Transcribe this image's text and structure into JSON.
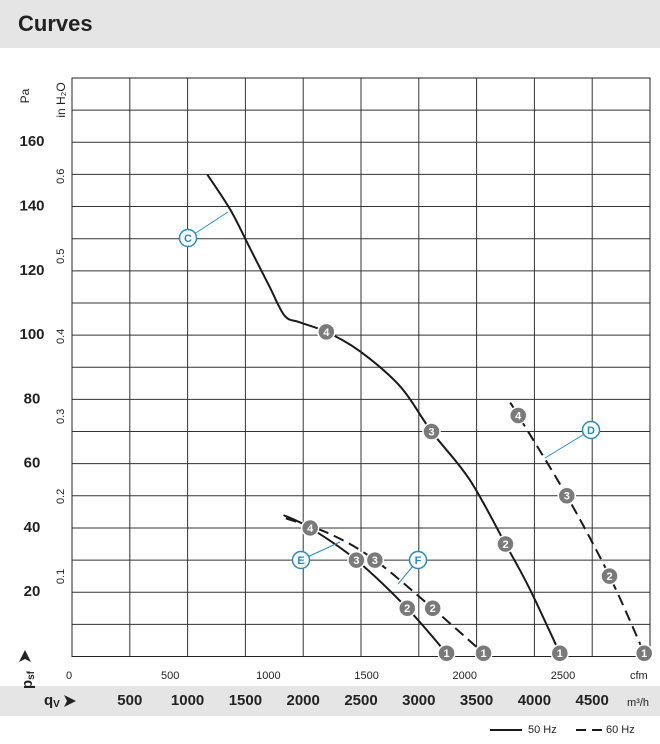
{
  "chart_data": {
    "type": "line",
    "title": "Curves",
    "y_label": "Pa",
    "y2_label": "in H₂O",
    "y_symbol": "p",
    "y_symbol_sub": "sf",
    "x_symbol": "q",
    "x_symbol_sub": "V",
    "x_label": "m³/h",
    "x2_label": "cfm",
    "xlim": [
      0,
      5000
    ],
    "xticks": [
      500,
      1000,
      1500,
      2000,
      2500,
      3000,
      3500,
      4000,
      4500
    ],
    "x2lim": [
      0,
      2943
    ],
    "x2ticks": [
      0,
      500,
      1000,
      1500,
      2000,
      2500
    ],
    "ylim": [
      0,
      180
    ],
    "yticks": [
      20,
      40,
      60,
      80,
      100,
      120,
      140,
      160
    ],
    "minor_yticks": [
      10,
      30,
      50,
      70,
      90,
      110,
      130,
      150,
      170
    ],
    "y2lim": [
      0,
      0.7227
    ],
    "y2ticks": [
      0.1,
      0.2,
      0.3,
      0.4,
      0.5,
      0.6
    ],
    "grid": true,
    "legend": [
      {
        "label": "50 Hz",
        "dashed": false
      },
      {
        "label": "60 Hz",
        "dashed": true
      }
    ],
    "series": [
      {
        "name": "C",
        "color": "#1a1a1a",
        "dashed": false,
        "x": [
          1170,
          1370,
          1540,
          1710,
          1840,
          1970,
          2200,
          2490,
          2840,
          3110,
          3440,
          3750,
          3960,
          4220
        ],
        "values": [
          150,
          139,
          127,
          115,
          106,
          104,
          101,
          95,
          84,
          70,
          55,
          35,
          21,
          1
        ],
        "markers": [
          {
            "x": 2200,
            "y": 101,
            "label": "4"
          },
          {
            "x": 3110,
            "y": 70,
            "label": "3"
          },
          {
            "x": 3750,
            "y": 35,
            "label": "2"
          },
          {
            "x": 4220,
            "y": 1,
            "label": "1"
          }
        ]
      },
      {
        "name": "D",
        "color": "#1a1a1a",
        "dashed": true,
        "x": [
          3790,
          3860,
          4280,
          4650,
          4950
        ],
        "values": [
          79,
          75,
          50,
          25,
          1
        ],
        "markers": [
          {
            "x": 3860,
            "y": 75,
            "label": "4"
          },
          {
            "x": 4280,
            "y": 50,
            "label": "3"
          },
          {
            "x": 4650,
            "y": 25,
            "label": "2"
          },
          {
            "x": 4950,
            "y": 1,
            "label": "1"
          }
        ]
      },
      {
        "name": "E",
        "color": "#1a1a1a",
        "dashed": false,
        "x": [
          1830,
          2060,
          2460,
          2900,
          3240
        ],
        "values": [
          44,
          40,
          30,
          15,
          1
        ],
        "markers": [
          {
            "x": 2060,
            "y": 40,
            "label": "4"
          },
          {
            "x": 2460,
            "y": 30,
            "label": "3"
          },
          {
            "x": 2900,
            "y": 15,
            "label": "2"
          },
          {
            "x": 3240,
            "y": 1,
            "label": "1"
          }
        ]
      },
      {
        "name": "F",
        "color": "#1a1a1a",
        "dashed": true,
        "x": [
          1850,
          2240,
          2620,
          3120,
          3560
        ],
        "values": [
          43,
          38,
          30,
          15,
          1
        ],
        "markers": [
          {
            "x": 2620,
            "y": 30,
            "label": "3"
          },
          {
            "x": 3120,
            "y": 15,
            "label": "2"
          },
          {
            "x": 3560,
            "y": 1,
            "label": "1"
          }
        ]
      }
    ]
  }
}
